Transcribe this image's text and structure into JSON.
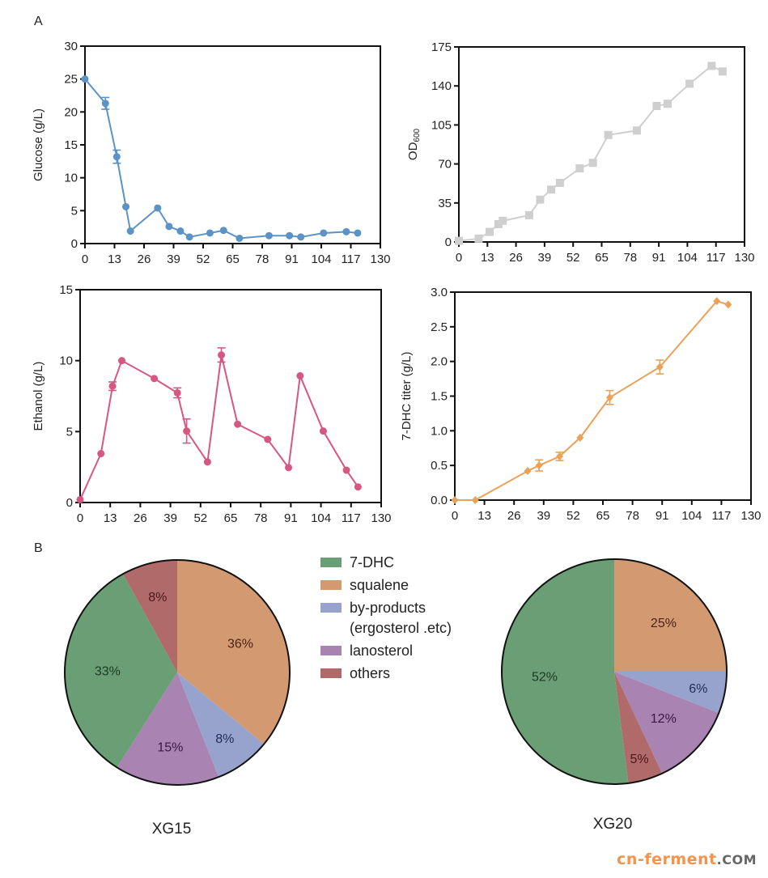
{
  "panel_labels": {
    "a": "A",
    "b": "B"
  },
  "chart_data": [
    {
      "id": "glucose",
      "type": "line",
      "title": "",
      "xlabel": "",
      "ylabel": "Glucose (g/L)",
      "xlim": [
        0,
        130
      ],
      "ylim": [
        0,
        30
      ],
      "xticks": [
        0,
        13,
        26,
        39,
        52,
        65,
        78,
        91,
        104,
        117,
        130
      ],
      "yticks": [
        0,
        5,
        10,
        15,
        20,
        25,
        30
      ],
      "marker": "circle",
      "color": "#5b93c7",
      "x": [
        0,
        9,
        14,
        18,
        20,
        32,
        37,
        42,
        46,
        55,
        61,
        68,
        81,
        90,
        95,
        105,
        115,
        120
      ],
      "y": [
        25.0,
        21.3,
        13.2,
        5.6,
        1.9,
        5.4,
        2.6,
        1.9,
        1.0,
        1.6,
        2.0,
        0.8,
        1.2,
        1.2,
        1.0,
        1.6,
        1.8,
        1.6
      ],
      "err": [
        0,
        0.9,
        1.0,
        0,
        0,
        0,
        0,
        0,
        0,
        0,
        0,
        0,
        0,
        0,
        0,
        0,
        0,
        0
      ],
      "grid": false
    },
    {
      "id": "od600",
      "type": "line",
      "title": "",
      "xlabel": "",
      "ylabel": "OD",
      "ylabel_sub": "600",
      "xlim": [
        0,
        130
      ],
      "ylim": [
        0,
        175
      ],
      "xticks": [
        0,
        13,
        26,
        39,
        52,
        65,
        78,
        91,
        104,
        117,
        130
      ],
      "yticks": [
        0,
        35,
        70,
        105,
        140,
        175
      ],
      "marker": "square",
      "color": "#cfcfcf",
      "x": [
        0,
        9,
        14,
        18,
        20,
        32,
        37,
        42,
        46,
        55,
        61,
        68,
        81,
        90,
        95,
        105,
        115,
        120
      ],
      "y": [
        1,
        3,
        9,
        16,
        19,
        24,
        38,
        47,
        53,
        66,
        71,
        96,
        100,
        122,
        124,
        142,
        158,
        153
      ],
      "err": [],
      "grid": false
    },
    {
      "id": "ethanol",
      "type": "line",
      "title": "",
      "xlabel": "",
      "ylabel": "Ethanol (g/L)",
      "xlim": [
        0,
        130
      ],
      "ylim": [
        0,
        15
      ],
      "xticks": [
        0,
        13,
        26,
        39,
        52,
        65,
        78,
        91,
        104,
        117,
        130
      ],
      "yticks": [
        0,
        5,
        10,
        15
      ],
      "marker": "circle",
      "color": "#d6577f",
      "x": [
        0,
        9,
        14,
        18,
        32,
        42,
        46,
        55,
        61,
        68,
        81,
        90,
        95,
        105,
        115,
        120
      ],
      "y": [
        0.2,
        3.45,
        8.2,
        10.0,
        8.74,
        7.73,
        5.04,
        2.86,
        10.4,
        5.52,
        4.45,
        2.46,
        8.93,
        5.04,
        2.28,
        1.1
      ],
      "err": [
        0,
        0,
        0.3,
        0,
        0,
        0.35,
        0.85,
        0,
        0.5,
        0,
        0,
        0,
        0,
        0,
        0,
        0
      ],
      "grid": false
    },
    {
      "id": "dhc_titer",
      "type": "line",
      "title": "",
      "xlabel": "",
      "ylabel": "7-DHC titer (g/L)",
      "xlim": [
        0,
        130
      ],
      "ylim": [
        0,
        3.0
      ],
      "xticks": [
        0,
        13,
        26,
        39,
        52,
        65,
        78,
        91,
        104,
        117,
        130
      ],
      "yticks": [
        "0.0",
        "0.5",
        "1.0",
        "1.5",
        "2.0",
        "2.5",
        "3.0"
      ],
      "marker": "diamond",
      "color": "#e9a25a",
      "x": [
        0,
        9,
        32,
        37,
        46,
        55,
        68,
        90,
        115,
        120
      ],
      "y": [
        0,
        0,
        0.42,
        0.5,
        0.63,
        0.9,
        1.48,
        1.92,
        2.87,
        2.82
      ],
      "err": [
        0,
        0,
        0,
        0.08,
        0.06,
        0,
        0.1,
        0.1,
        0,
        0
      ],
      "grid": false
    },
    {
      "id": "pie_xg15",
      "type": "pie",
      "title": "XG15",
      "slices": [
        {
          "name": "squalene",
          "value": 36,
          "label": "36%"
        },
        {
          "name": "by-products (ergosterol .etc)",
          "value": 8,
          "label": "8%"
        },
        {
          "name": "lanosterol",
          "value": 15,
          "label": "15%"
        },
        {
          "name": "7-DHC",
          "value": 33,
          "label": "33%"
        },
        {
          "name": "others",
          "value": 8,
          "label": "8%"
        }
      ]
    },
    {
      "id": "pie_xg20",
      "type": "pie",
      "title": "XG20",
      "slices": [
        {
          "name": "squalene",
          "value": 25,
          "label": "25%"
        },
        {
          "name": "by-products (ergosterol .etc)",
          "value": 6,
          "label": "6%"
        },
        {
          "name": "lanosterol",
          "value": 12,
          "label": "12%"
        },
        {
          "name": "others",
          "value": 5,
          "label": "5%"
        },
        {
          "name": "7-DHC",
          "value": 52,
          "label": "52%"
        }
      ]
    }
  ],
  "legend": {
    "placement": "center-between-pies",
    "items": [
      {
        "label": "7-DHC",
        "color": "#6a9e74"
      },
      {
        "label": "squalene",
        "color": "#d39a72"
      },
      {
        "label": "by-products",
        "label2": "(ergosterol .etc)",
        "color": "#97a3cc"
      },
      {
        "label": "lanosterol",
        "color": "#a983b1"
      },
      {
        "label": "others",
        "color": "#b06a6a"
      }
    ]
  },
  "pie_colors": {
    "7-DHC": "#6a9e74",
    "squalene": "#d39a72",
    "by-products (ergosterol .etc)": "#97a3cc",
    "lanosterol": "#a983b1",
    "others": "#b06a6a"
  },
  "pie_label_colors": {
    "7-DHC": "#1e3a22",
    "squalene": "#4a2218",
    "by-products (ergosterol .etc)": "#262c55",
    "lanosterol": "#3a1a44",
    "others": "#4a1818"
  },
  "watermark": {
    "main": "cn-ferment",
    "suffix": ".COM"
  }
}
